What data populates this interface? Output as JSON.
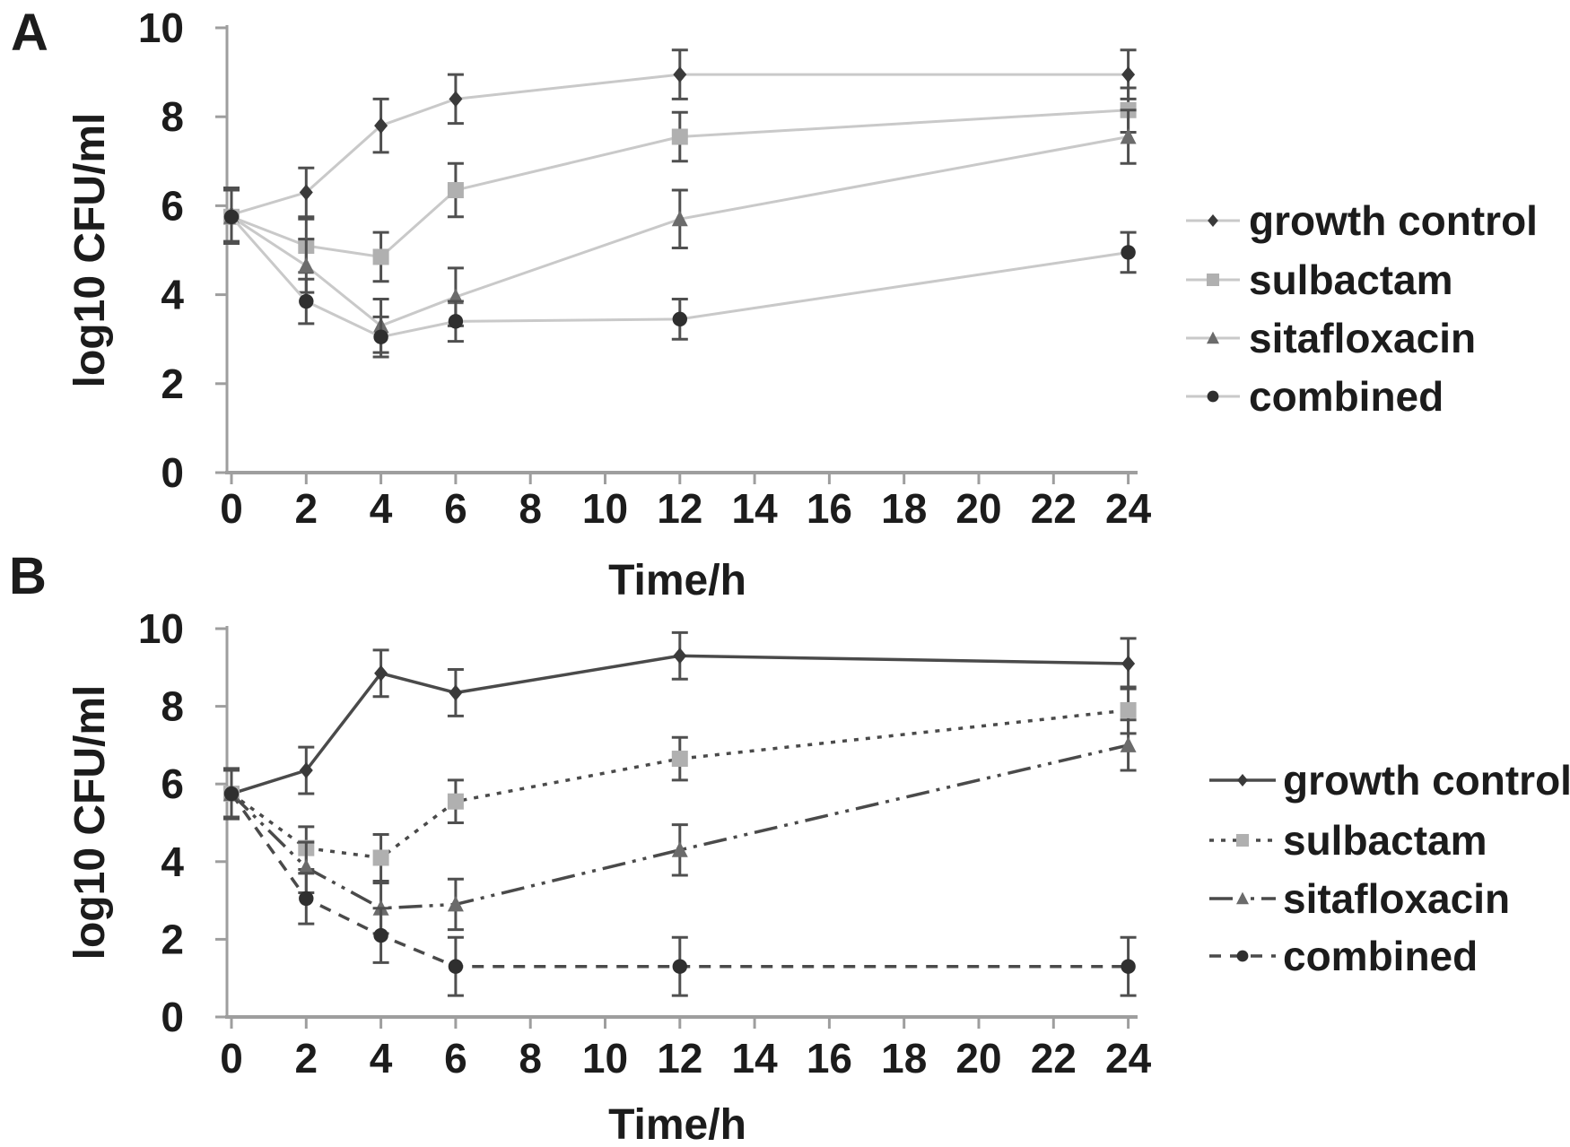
{
  "colors": {
    "growth_control_marker": "#3a3a3a",
    "sulbactam_marker": "#b0b0b0",
    "sitafloxacin_marker": "#6b6b6b",
    "combined_marker": "#2f2f2f",
    "panel_a_line": "#c9c9c9",
    "panel_b_line": "#4a4a4a",
    "error_bar": "#4f4f4f",
    "axis": "#9e9e9e",
    "text": "#1c1c1c",
    "background": "#ffffff"
  },
  "chart_data": [
    {
      "type": "line",
      "panel_label": "A",
      "title": "",
      "xlabel": "Time/h",
      "ylabel": "log10 CFU/ml",
      "x": [
        0,
        2,
        4,
        6,
        12,
        24
      ],
      "xticks": [
        0,
        2,
        4,
        6,
        8,
        10,
        12,
        14,
        16,
        18,
        20,
        22,
        24
      ],
      "yticks": [
        0,
        2,
        4,
        6,
        8,
        10
      ],
      "xlim": [
        0,
        24
      ],
      "ylim": [
        0,
        10
      ],
      "grid": false,
      "legend_position": "right",
      "series": [
        {
          "name": "growth control",
          "marker": "diamond",
          "line_style": "solid",
          "values": [
            5.8,
            6.3,
            7.8,
            8.4,
            8.95,
            8.95
          ],
          "errors": [
            0.6,
            0.55,
            0.6,
            0.55,
            0.55,
            0.55
          ]
        },
        {
          "name": "sulbactam",
          "marker": "square",
          "line_style": "solid",
          "values": [
            5.75,
            5.1,
            4.85,
            6.35,
            7.55,
            8.15
          ],
          "errors": [
            0.6,
            0.6,
            0.55,
            0.6,
            0.55,
            0.5
          ]
        },
        {
          "name": "sitafloxacin",
          "marker": "triangle",
          "line_style": "solid",
          "values": [
            5.75,
            4.65,
            3.3,
            3.95,
            5.7,
            7.55
          ],
          "errors": [
            0.6,
            0.6,
            0.6,
            0.65,
            0.65,
            0.6
          ]
        },
        {
          "name": "combined",
          "marker": "circle",
          "line_style": "solid",
          "values": [
            5.75,
            3.85,
            3.05,
            3.4,
            3.45,
            4.95
          ],
          "errors": [
            0.6,
            0.5,
            0.45,
            0.45,
            0.45,
            0.45
          ]
        }
      ]
    },
    {
      "type": "line",
      "panel_label": "B",
      "title": "",
      "xlabel": "Time/h",
      "ylabel": "log10 CFU/ml",
      "x": [
        0,
        2,
        4,
        6,
        12,
        24
      ],
      "xticks": [
        0,
        2,
        4,
        6,
        8,
        10,
        12,
        14,
        16,
        18,
        20,
        22,
        24
      ],
      "yticks": [
        0,
        2,
        4,
        6,
        8,
        10
      ],
      "xlim": [
        0,
        24
      ],
      "ylim": [
        0,
        10
      ],
      "grid": false,
      "legend_position": "right",
      "series": [
        {
          "name": "growth control",
          "marker": "diamond",
          "line_style": "solid",
          "values": [
            5.75,
            6.35,
            8.85,
            8.35,
            9.3,
            9.1
          ],
          "errors": [
            0.65,
            0.6,
            0.6,
            0.6,
            0.6,
            0.65
          ]
        },
        {
          "name": "sulbactam",
          "marker": "square",
          "line_style": "dotted",
          "values": [
            5.75,
            4.35,
            4.1,
            5.55,
            6.65,
            7.9
          ],
          "errors": [
            0.6,
            0.55,
            0.6,
            0.55,
            0.55,
            0.6
          ]
        },
        {
          "name": "sitafloxacin",
          "marker": "triangle",
          "line_style": "dashdotdot",
          "values": [
            5.75,
            3.85,
            2.8,
            2.9,
            4.3,
            7.0
          ],
          "errors": [
            0.6,
            0.65,
            0.65,
            0.65,
            0.65,
            0.65
          ]
        },
        {
          "name": "combined",
          "marker": "circle",
          "line_style": "dashed",
          "values": [
            5.75,
            3.05,
            2.1,
            1.3,
            1.3,
            1.3
          ],
          "errors": [
            0.6,
            0.65,
            0.7,
            0.75,
            0.75,
            0.75
          ]
        }
      ]
    }
  ]
}
